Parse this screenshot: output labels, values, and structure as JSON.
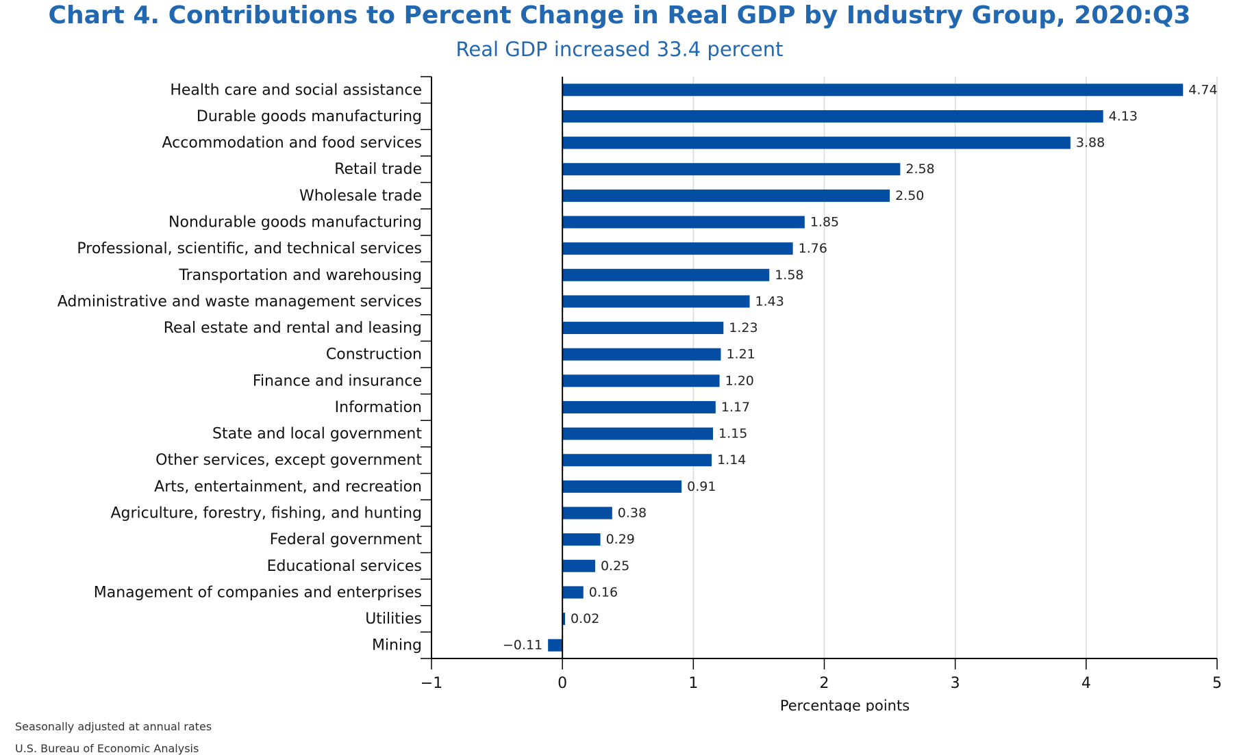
{
  "chart_data": {
    "type": "bar",
    "orientation": "horizontal",
    "title": "Chart 4. Contributions to Percent Change in Real GDP by Industry Group, 2020:Q3",
    "subtitle": "Real GDP increased 33.4 percent",
    "xlabel": "Percentage points",
    "ylabel": "",
    "xlim": [
      -1,
      5
    ],
    "xticks": [
      -1,
      0,
      1,
      2,
      3,
      4,
      5
    ],
    "xtick_labels": [
      "−1",
      "0",
      "1",
      "2",
      "3",
      "4",
      "5"
    ],
    "grid": true,
    "bar_color": "#034ea2",
    "categories": [
      "Health care and social assistance",
      "Durable goods manufacturing",
      "Accommodation and food services",
      "Retail trade",
      "Wholesale trade",
      "Nondurable goods manufacturing",
      "Professional, scientific, and technical services",
      "Transportation and warehousing",
      "Administrative and waste management services",
      "Real estate and rental and leasing",
      "Construction",
      "Finance and insurance",
      "Information",
      "State and local government",
      "Other services, except government",
      "Arts, entertainment, and recreation",
      "Agriculture, forestry, fishing, and hunting",
      "Federal government",
      "Educational services",
      "Management of companies and enterprises",
      "Utilities",
      "Mining"
    ],
    "values": [
      4.74,
      4.13,
      3.88,
      2.58,
      2.5,
      1.85,
      1.76,
      1.58,
      1.43,
      1.23,
      1.21,
      1.2,
      1.17,
      1.15,
      1.14,
      0.91,
      0.38,
      0.29,
      0.25,
      0.16,
      0.02,
      -0.11
    ],
    "value_labels": [
      "4.74",
      "4.13",
      "3.88",
      "2.58",
      "2.50",
      "1.85",
      "1.76",
      "1.58",
      "1.43",
      "1.23",
      "1.21",
      "1.20",
      "1.17",
      "1.15",
      "1.14",
      "0.91",
      "0.38",
      "0.29",
      "0.25",
      "0.16",
      "0.02",
      "−0.11"
    ]
  },
  "footnotes": {
    "note": "Seasonally adjusted at annual rates",
    "source": "U.S. Bureau of Economic Analysis"
  }
}
